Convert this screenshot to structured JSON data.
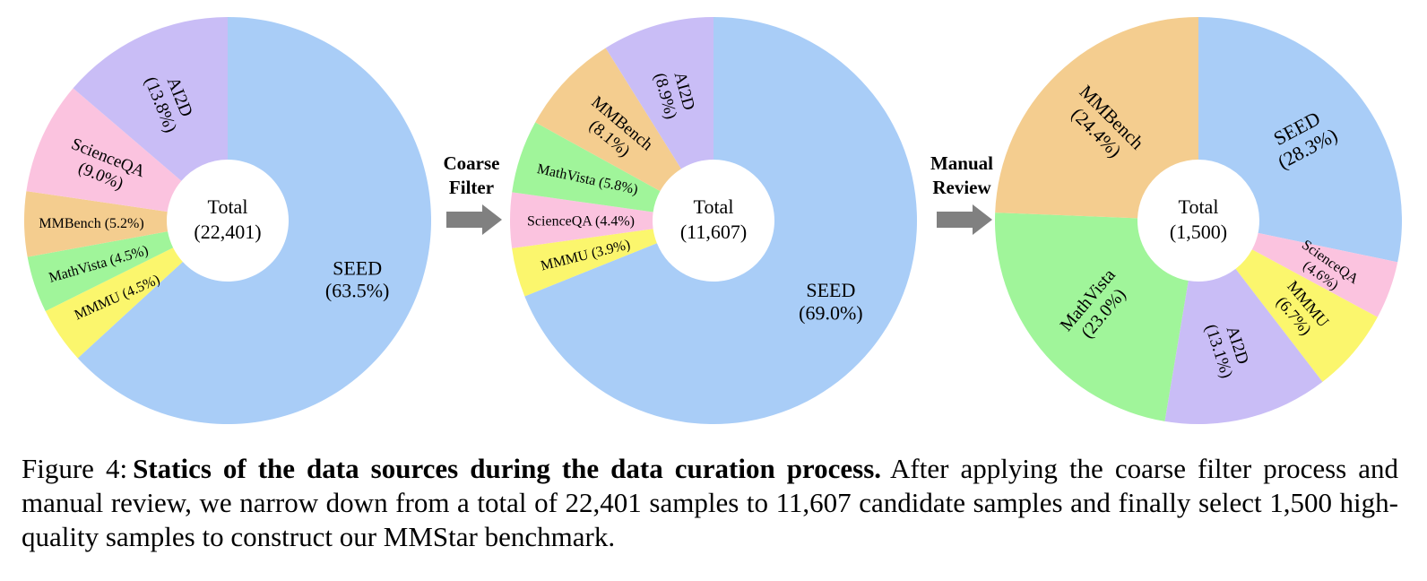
{
  "chart_data": [
    {
      "type": "pie",
      "center_label": [
        "Total",
        "(22,401)"
      ],
      "slices": [
        {
          "label": "SEED",
          "pct_text": "(63.5%)",
          "value": 63.5,
          "color": "#a9cdf7"
        },
        {
          "label": "MMMU",
          "pct_text": "(4.5%)",
          "value": 4.5,
          "color": "#fbf66d"
        },
        {
          "label": "MathVista",
          "pct_text": "(4.5%)",
          "value": 4.5,
          "color": "#a0f59a"
        },
        {
          "label": "MMBench",
          "pct_text": "(5.2%)",
          "value": 5.2,
          "color": "#f4cd8f"
        },
        {
          "label": "ScienceQA",
          "pct_text": "(9.0%)",
          "value": 9.0,
          "color": "#fbc3df"
        },
        {
          "label": "AI2D",
          "pct_text": "(13.8%)",
          "value": 13.8,
          "color": "#c9bdf6"
        }
      ]
    },
    {
      "type": "pie",
      "center_label": [
        "Total",
        "(11,607)"
      ],
      "slices": [
        {
          "label": "SEED",
          "pct_text": "(69.0%)",
          "value": 69.0,
          "color": "#a9cdf7"
        },
        {
          "label": "MMMU",
          "pct_text": "(3.9%)",
          "value": 3.9,
          "color": "#fbf66d"
        },
        {
          "label": "ScienceQA",
          "pct_text": "(4.4%)",
          "value": 4.4,
          "color": "#fbc3df"
        },
        {
          "label": "MathVista",
          "pct_text": "(5.8%)",
          "value": 5.8,
          "color": "#a0f59a"
        },
        {
          "label": "MMBench",
          "pct_text": "(8.1%)",
          "value": 8.1,
          "color": "#f4cd8f"
        },
        {
          "label": "AI2D",
          "pct_text": "(8.9%)",
          "value": 8.9,
          "color": "#c9bdf6"
        }
      ]
    },
    {
      "type": "pie",
      "center_label": [
        "Total",
        "(1,500)"
      ],
      "slices": [
        {
          "label": "SEED",
          "pct_text": "(28.3%)",
          "value": 28.3,
          "color": "#a9cdf7"
        },
        {
          "label": "ScienceQA",
          "pct_text": "(4.6%)",
          "value": 4.6,
          "color": "#fbc3df"
        },
        {
          "label": "MMMU",
          "pct_text": "(6.7%)",
          "value": 6.7,
          "color": "#fbf66d"
        },
        {
          "label": "AI2D",
          "pct_text": "(13.1%)",
          "value": 13.1,
          "color": "#c9bdf6"
        },
        {
          "label": "MathVista",
          "pct_text": "(23.0%)",
          "value": 23.0,
          "color": "#a0f59a"
        },
        {
          "label": "MMBench",
          "pct_text": "(24.4%)",
          "value": 24.4,
          "color": "#f4cd8f"
        }
      ]
    }
  ],
  "arrows": [
    {
      "lines": [
        "Coarse",
        "Filter"
      ],
      "color": "#808080"
    },
    {
      "lines": [
        "Manual",
        "Review"
      ],
      "color": "#808080"
    }
  ],
  "caption": {
    "lead": "Figure 4:",
    "bold": "Statics of the data sources during the data curation process.",
    "body": "After applying the coarse filter process and manual review, we narrow down from a total of 22,401 samples to 11,607 candidate samples and finally select 1,500 high-quality samples to construct our MMStar benchmark."
  }
}
